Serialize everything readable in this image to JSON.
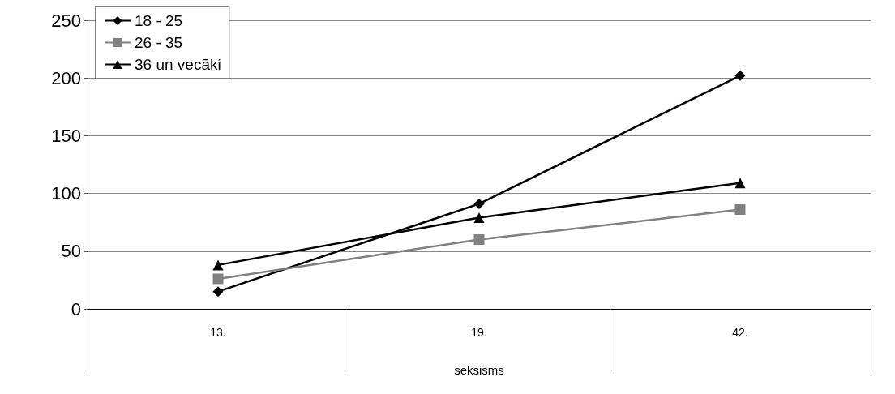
{
  "chart_data": {
    "type": "line",
    "categories": [
      "13.",
      "19.",
      "42."
    ],
    "xlabel": "seksisms",
    "ylim": [
      0,
      250
    ],
    "yticks": [
      0,
      50,
      100,
      150,
      200,
      250
    ],
    "grid": "y",
    "legend": "top left",
    "series": [
      {
        "name": "18 - 25",
        "color": "#000000",
        "marker": "diamond",
        "values": [
          15,
          91,
          202
        ]
      },
      {
        "name": "26 - 35",
        "color": "#808080",
        "marker": "square",
        "values": [
          26,
          60,
          86
        ]
      },
      {
        "name": "36 un vecāki",
        "color": "#000000",
        "marker": "triangle",
        "values": [
          38,
          79,
          109
        ]
      }
    ]
  }
}
